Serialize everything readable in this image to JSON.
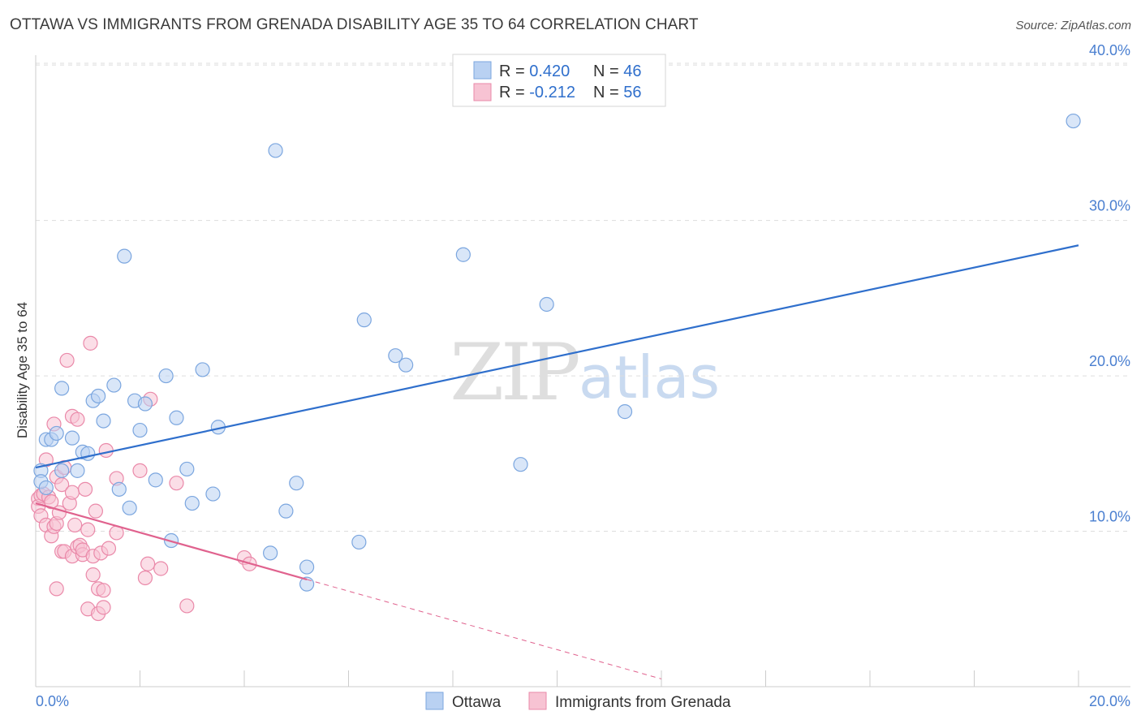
{
  "header": {
    "title": "OTTAWA VS IMMIGRANTS FROM GRENADA DISABILITY AGE 35 TO 64 CORRELATION CHART",
    "source": "Source: ZipAtlas.com"
  },
  "watermark": {
    "zip": "ZIP",
    "atlas": "atlas"
  },
  "stats_legend": {
    "rows": [
      {
        "r_label": "R = ",
        "r_value": "0.420",
        "n_label": "N = ",
        "n_value": "46"
      },
      {
        "r_label": "R = ",
        "r_value": "-0.212",
        "n_label": "N = ",
        "n_value": "56"
      }
    ]
  },
  "bottom_legend": {
    "items": [
      "Ottawa",
      "Immigrants from Grenada"
    ]
  },
  "colors": {
    "blue_fill": "#b9d1f2",
    "blue_stroke": "#7ba6df",
    "blue_line": "#2f6fcc",
    "pink_fill": "#f7c3d3",
    "pink_stroke": "#ea89a9",
    "pink_line": "#e0628e",
    "axis_text": "#4a7fd0",
    "grid": "#dddddd"
  },
  "chart_data": {
    "type": "scatter",
    "title": "OTTAWA VS IMMIGRANTS FROM GRENADA DISABILITY AGE 35 TO 64 CORRELATION CHART",
    "xlabel": "",
    "ylabel": "Disability Age 35 to 64",
    "xlim": [
      0,
      20
    ],
    "ylim": [
      0,
      41
    ],
    "x_tick_labels": [
      "0.0%",
      "20.0%"
    ],
    "y_ticks": [
      10,
      20,
      30,
      40
    ],
    "y_tick_labels": [
      "10.0%",
      "20.0%",
      "30.0%",
      "40.0%"
    ],
    "grid": true,
    "series": [
      {
        "name": "Ottawa",
        "r": 0.42,
        "n": 46,
        "trend": {
          "x": [
            0,
            20
          ],
          "y": [
            14.1,
            28.4
          ],
          "dashed_to": null
        },
        "points": [
          [
            0.1,
            13.9
          ],
          [
            0.1,
            13.2
          ],
          [
            0.2,
            12.8
          ],
          [
            0.2,
            15.9
          ],
          [
            0.3,
            15.9
          ],
          [
            0.4,
            16.3
          ],
          [
            0.5,
            19.2
          ],
          [
            0.5,
            13.9
          ],
          [
            0.7,
            16.0
          ],
          [
            0.8,
            13.9
          ],
          [
            0.9,
            15.1
          ],
          [
            1.0,
            15.0
          ],
          [
            1.1,
            18.4
          ],
          [
            1.2,
            18.7
          ],
          [
            1.3,
            17.1
          ],
          [
            1.5,
            19.4
          ],
          [
            1.6,
            12.7
          ],
          [
            1.7,
            27.7
          ],
          [
            1.8,
            11.5
          ],
          [
            1.9,
            18.4
          ],
          [
            2.0,
            16.5
          ],
          [
            2.1,
            18.2
          ],
          [
            2.3,
            13.3
          ],
          [
            2.5,
            20.0
          ],
          [
            2.6,
            9.4
          ],
          [
            2.7,
            17.3
          ],
          [
            2.9,
            14.0
          ],
          [
            3.0,
            11.8
          ],
          [
            3.2,
            20.4
          ],
          [
            3.4,
            12.4
          ],
          [
            3.5,
            16.7
          ],
          [
            4.5,
            8.6
          ],
          [
            4.6,
            34.5
          ],
          [
            4.8,
            11.3
          ],
          [
            5.0,
            13.1
          ],
          [
            5.2,
            7.7
          ],
          [
            5.2,
            6.6
          ],
          [
            6.2,
            9.3
          ],
          [
            6.3,
            23.6
          ],
          [
            6.9,
            21.3
          ],
          [
            7.1,
            20.7
          ],
          [
            8.2,
            27.8
          ],
          [
            9.3,
            14.3
          ],
          [
            9.8,
            24.6
          ],
          [
            11.3,
            17.7
          ],
          [
            19.9,
            36.4
          ]
        ]
      },
      {
        "name": "Immigrants from Grenada",
        "r": -0.212,
        "n": 56,
        "trend": {
          "x": [
            0,
            5.2
          ],
          "y": [
            11.8,
            6.9
          ],
          "dashed_to": [
            12.0,
            0.5
          ]
        },
        "points": [
          [
            0.05,
            12.1
          ],
          [
            0.05,
            11.6
          ],
          [
            0.1,
            12.3
          ],
          [
            0.1,
            11.0
          ],
          [
            0.15,
            12.4
          ],
          [
            0.2,
            10.4
          ],
          [
            0.2,
            14.6
          ],
          [
            0.25,
            12.2
          ],
          [
            0.3,
            11.9
          ],
          [
            0.3,
            9.7
          ],
          [
            0.35,
            16.9
          ],
          [
            0.35,
            10.3
          ],
          [
            0.4,
            13.5
          ],
          [
            0.4,
            10.5
          ],
          [
            0.4,
            6.3
          ],
          [
            0.45,
            11.2
          ],
          [
            0.5,
            8.7
          ],
          [
            0.5,
            13.0
          ],
          [
            0.55,
            14.1
          ],
          [
            0.55,
            8.7
          ],
          [
            0.6,
            21.0
          ],
          [
            0.65,
            11.8
          ],
          [
            0.7,
            8.4
          ],
          [
            0.7,
            12.5
          ],
          [
            0.7,
            17.4
          ],
          [
            0.75,
            10.4
          ],
          [
            0.8,
            17.2
          ],
          [
            0.8,
            9.0
          ],
          [
            0.85,
            9.1
          ],
          [
            0.9,
            8.5
          ],
          [
            0.9,
            8.8
          ],
          [
            0.95,
            12.7
          ],
          [
            1.0,
            10.1
          ],
          [
            1.0,
            5.0
          ],
          [
            1.05,
            22.1
          ],
          [
            1.1,
            8.4
          ],
          [
            1.1,
            7.2
          ],
          [
            1.15,
            11.3
          ],
          [
            1.2,
            6.3
          ],
          [
            1.2,
            4.7
          ],
          [
            1.25,
            8.6
          ],
          [
            1.3,
            6.2
          ],
          [
            1.3,
            5.1
          ],
          [
            1.35,
            15.2
          ],
          [
            1.4,
            8.9
          ],
          [
            1.55,
            13.4
          ],
          [
            1.55,
            9.9
          ],
          [
            2.0,
            13.9
          ],
          [
            2.1,
            7.0
          ],
          [
            2.15,
            7.9
          ],
          [
            2.2,
            18.5
          ],
          [
            2.4,
            7.6
          ],
          [
            2.7,
            13.1
          ],
          [
            2.9,
            5.2
          ],
          [
            4.0,
            8.3
          ],
          [
            4.1,
            7.9
          ]
        ]
      }
    ]
  }
}
